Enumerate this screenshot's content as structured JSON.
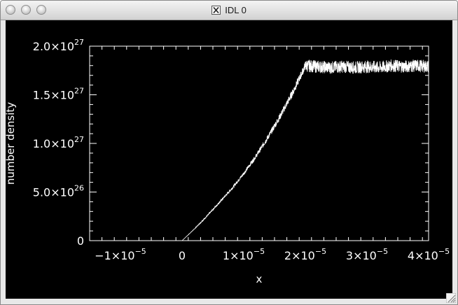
{
  "window": {
    "title": "IDL 0",
    "title_icon": "x11-icon"
  },
  "chart_data": {
    "type": "line",
    "title": "",
    "xlabel": "x",
    "ylabel": "number density",
    "xlim": [
      -1.5e-05,
      4e-05
    ],
    "ylim": [
      0,
      2e+27
    ],
    "x_ticks": [
      {
        "value": -1e-05,
        "mantissa": "−1×10",
        "exp": "−5"
      },
      {
        "value": 0,
        "mantissa": "0",
        "exp": ""
      },
      {
        "value": 1e-05,
        "mantissa": "1×10",
        "exp": "−5"
      },
      {
        "value": 2e-05,
        "mantissa": "2×10",
        "exp": "−5"
      },
      {
        "value": 3e-05,
        "mantissa": "3×10",
        "exp": "−5"
      },
      {
        "value": 4e-05,
        "mantissa": "4×10",
        "exp": "−5"
      }
    ],
    "y_ticks": [
      {
        "value": 0,
        "mantissa": "0",
        "exp": ""
      },
      {
        "value": 5e+26,
        "mantissa": "5.0×10",
        "exp": "26"
      },
      {
        "value": 1e+27,
        "mantissa": "1.0×10",
        "exp": "27"
      },
      {
        "value": 1.5e+27,
        "mantissa": "1.5×10",
        "exp": "27"
      },
      {
        "value": 2e+27,
        "mantissa": "2.0×10",
        "exp": "27"
      }
    ],
    "series": [
      {
        "x": [
          0,
          2e-06,
          4e-06,
          6e-06,
          8e-06,
          1e-05,
          1.2e-05,
          1.4e-05,
          1.6e-05,
          1.8e-05,
          2e-05,
          2.2e-05,
          2.4e-05,
          2.6e-05,
          2.8e-05,
          3e-05,
          3.2e-05,
          3.4e-05,
          3.6e-05,
          3.8e-05,
          4e-05
        ],
        "y": [
          0,
          1.2e+26,
          2.5e+26,
          3.9e+26,
          5.3e+26,
          6.9e+26,
          8.7e+26,
          1.07e+27,
          1.29e+27,
          1.53e+27,
          1.8e+27,
          1.79e+27,
          1.78e+27,
          1.79e+27,
          1.78e+27,
          1.79e+27,
          1.78e+27,
          1.8e+27,
          1.79e+27,
          1.8e+27,
          1.79e+27
        ],
        "noise_amplitude": 5e+25
      }
    ],
    "colors": {
      "background": "#000000",
      "foreground": "#ffffff"
    }
  }
}
